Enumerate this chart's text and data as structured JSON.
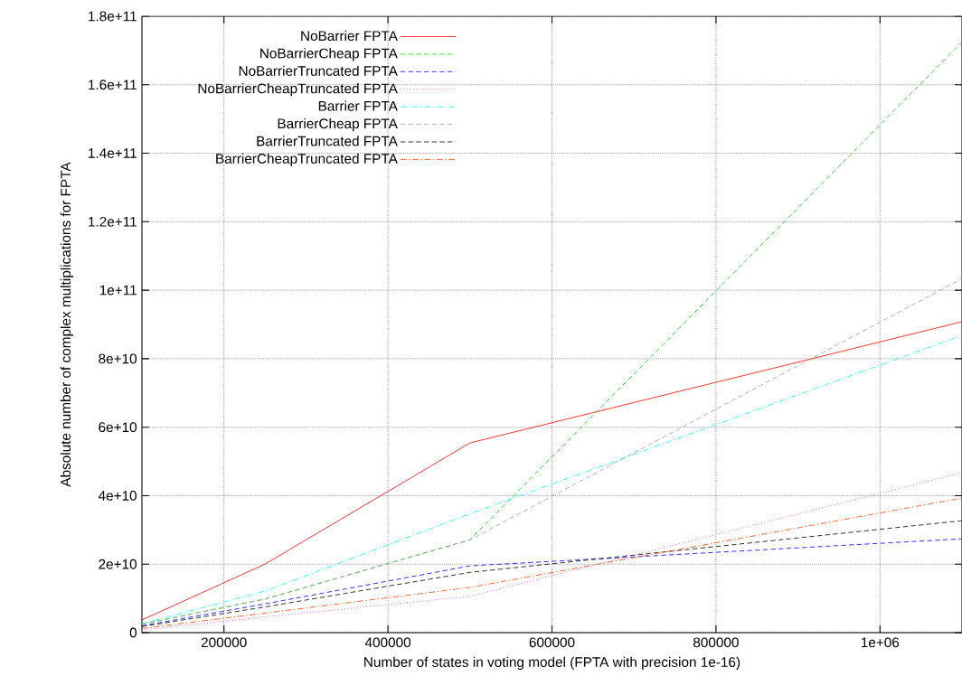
{
  "chart_data": {
    "type": "line",
    "xlabel": "Number of states in voting model (FPTA with precision 1e-16)",
    "ylabel": "Absolute number of complex multiplications for FPTA",
    "x": [
      100000,
      250000,
      500000,
      1100000
    ],
    "series": [
      {
        "name": "NoBarrier FPTA",
        "color": "#ff0000",
        "line_style": "solid",
        "values": [
          3700000000.0,
          20000000000.0,
          55400000000.0,
          90800000000.0
        ]
      },
      {
        "name": "NoBarrierCheap FPTA",
        "color": "#00dd00",
        "line_style": "dashed",
        "values": [
          2500000000.0,
          9800000000.0,
          27100000000.0,
          172500000000.0
        ]
      },
      {
        "name": "NoBarrierTruncated FPTA",
        "color": "#0000ff",
        "line_style": "dashed",
        "values": [
          2000000000.0,
          8400000000.0,
          19500000000.0,
          27400000000.0
        ]
      },
      {
        "name": "NoBarrierCheapTruncated FPTA",
        "color": "#ff00ff",
        "line_style": "dotted",
        "values": [
          800000000.0,
          4600000000.0,
          10600000000.0,
          46700000000.0
        ]
      },
      {
        "name": "Barrier FPTA",
        "color": "#00ffff",
        "line_style": "dashdot",
        "values": [
          2600000000.0,
          12100000000.0,
          34700000000.0,
          86800000000.0
        ]
      },
      {
        "name": "BarrierCheap FPTA",
        "color": "#a0a0a0",
        "line_style": "dashed",
        "values": [
          2500000000.0,
          9800000000.0,
          27100000000.0,
          103400000000.0
        ]
      },
      {
        "name": "BarrierTruncated FPTA",
        "color": "#000000",
        "line_style": "dashed",
        "values": [
          1800000000.0,
          7500000000.0,
          17600000000.0,
          32700000000.0
        ]
      },
      {
        "name": "BarrierCheapTruncated FPTA",
        "color": "#ff4500",
        "line_style": "dashdot",
        "values": [
          1200000000.0,
          5700000000.0,
          13200000000.0,
          39300000000.0
        ]
      }
    ],
    "xlim": [
      100000,
      1100000
    ],
    "ylim": [
      0,
      180000000000.0
    ],
    "xticks": [
      200000,
      400000,
      600000,
      800000,
      {
        "value": 1000000,
        "label": "1e+06"
      }
    ],
    "yticks": [
      0,
      {
        "value": 20000000000.0,
        "label": "2e+10"
      },
      {
        "value": 40000000000.0,
        "label": "4e+10"
      },
      {
        "value": 60000000000.0,
        "label": "6e+10"
      },
      {
        "value": 80000000000.0,
        "label": "8e+10"
      },
      {
        "value": 100000000000.0,
        "label": "1e+11"
      },
      {
        "value": 120000000000.0,
        "label": "1.2e+11"
      },
      {
        "value": 140000000000.0,
        "label": "1.4e+11"
      },
      {
        "value": 160000000000.0,
        "label": "1.6e+11"
      },
      {
        "value": 180000000000.0,
        "label": "1.8e+11"
      }
    ],
    "grid": true,
    "legend": "top left"
  }
}
